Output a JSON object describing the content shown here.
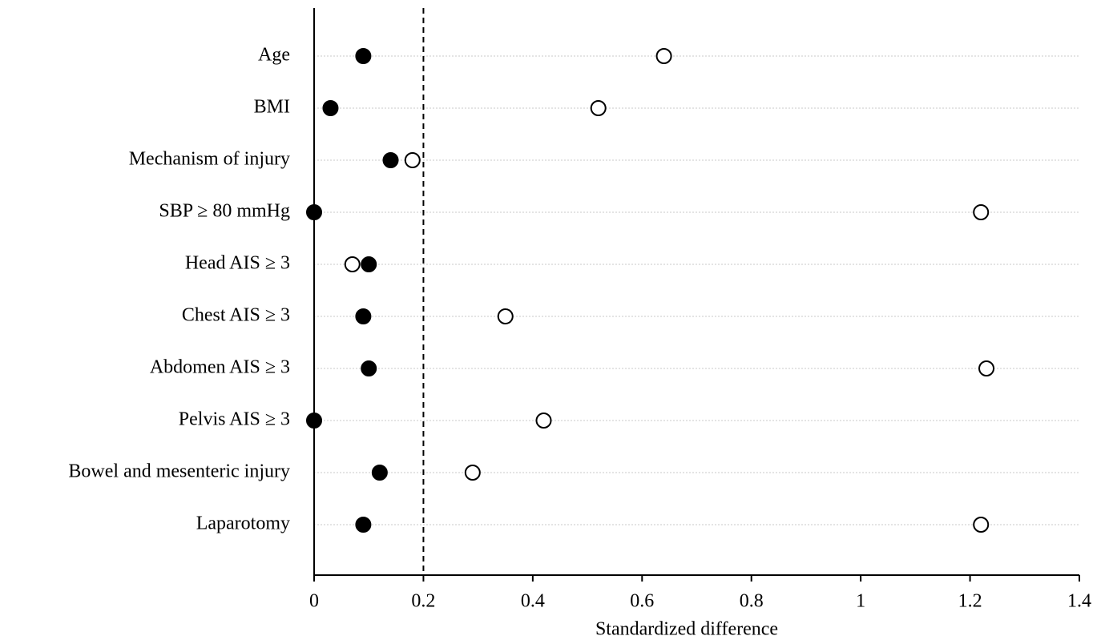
{
  "chart_data": {
    "type": "dotplot",
    "x_label": "Standardized difference",
    "categories": [
      "Age",
      "BMI",
      "Mechanism of injury",
      "SBP ≥ 80 mmHg",
      "Head AIS ≥ 3",
      "Chest AIS ≥ 3",
      "Abdomen AIS ≥ 3",
      "Pelvis AIS ≥ 3",
      "Bowel and mesenteric injury",
      "Laparotomy"
    ],
    "series": [
      {
        "color": "#000000",
        "filled": true,
        "values": [
          0.09,
          0.03,
          0.14,
          0,
          0.1,
          0.09,
          0.1,
          0,
          0.12,
          0.09
        ]
      },
      {
        "color": "#000000",
        "filled": false,
        "values": [
          0.64,
          0.52,
          0.18,
          1.22,
          0.07,
          0.35,
          1.23,
          0.42,
          0.29,
          1.22
        ]
      }
    ],
    "xlim": [
      0,
      1.4
    ],
    "xticks": [
      0,
      0.2,
      0.4,
      0.6,
      0.8,
      1,
      1.2,
      1.4
    ],
    "reference_line": 0.2,
    "grid": true
  }
}
